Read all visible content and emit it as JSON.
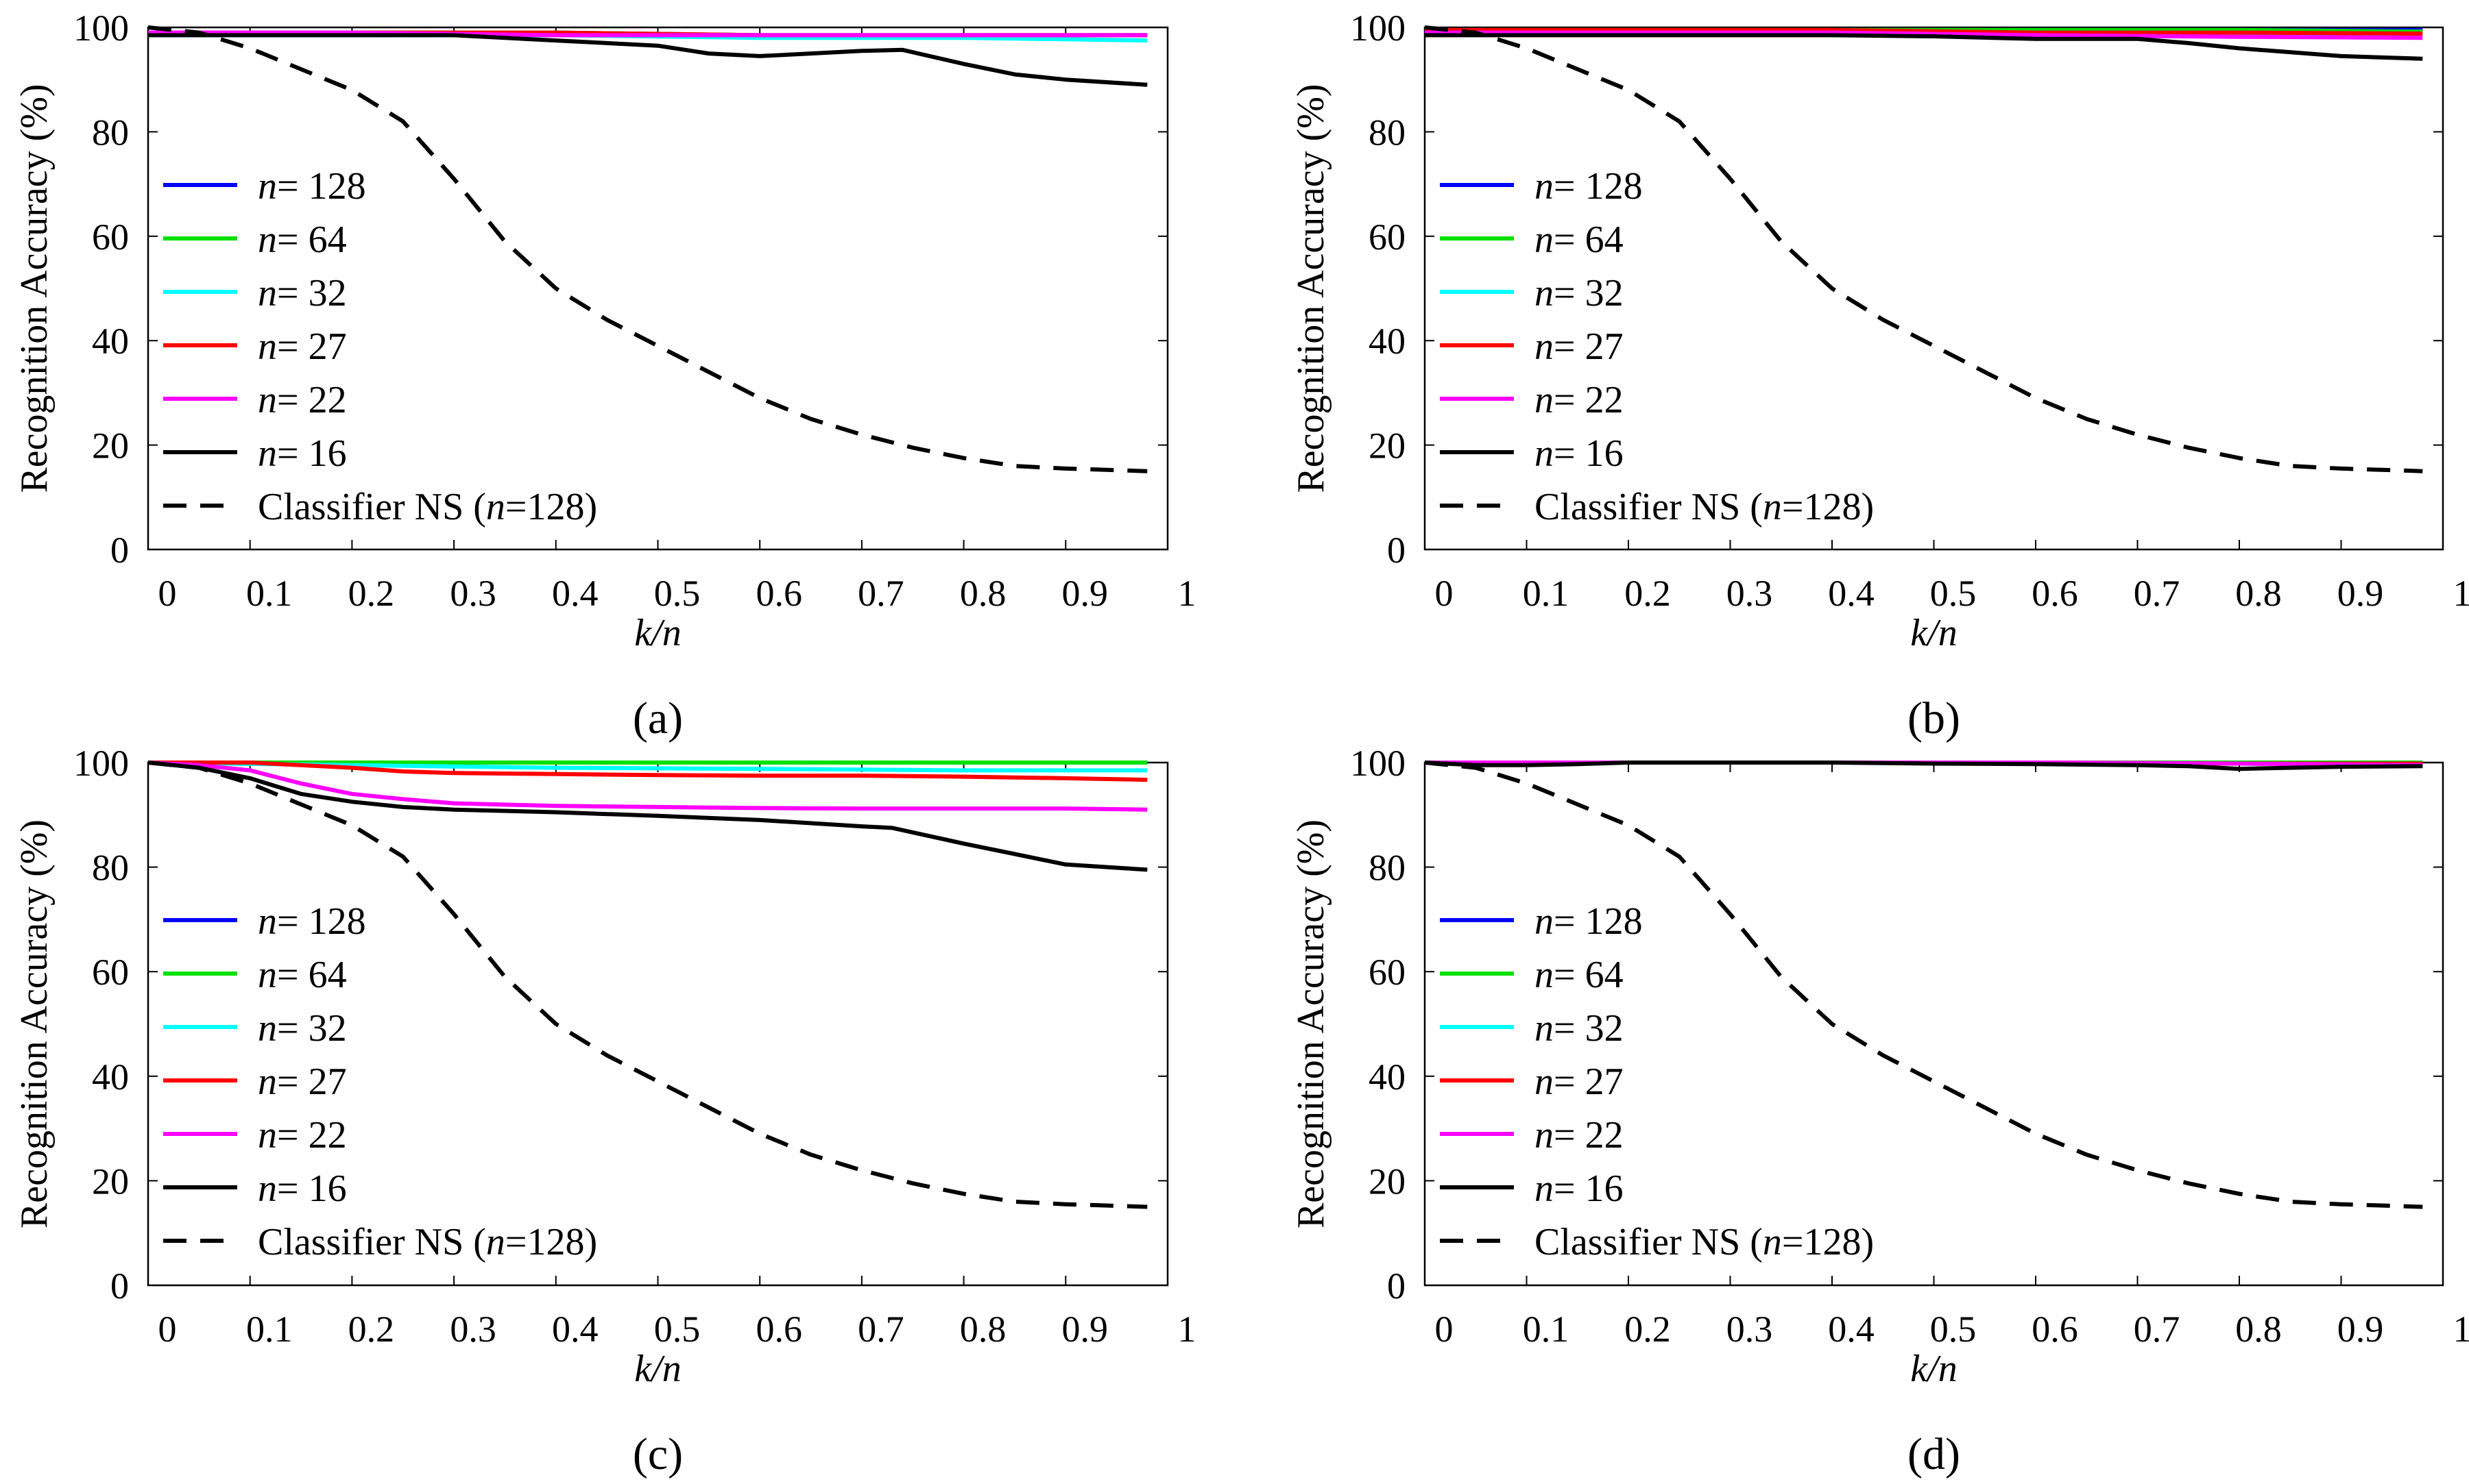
{
  "figure": {
    "x_tick_labels": [
      "0",
      "0.1",
      "0.2",
      "0.3",
      "0.4",
      "0.5",
      "0.6",
      "0.7",
      "0.8",
      "0.9",
      "1"
    ],
    "y_tick_labels": [
      "0",
      "20",
      "40",
      "60",
      "80",
      "100"
    ]
  },
  "chart_data": [
    {
      "type": "line",
      "panel": "a",
      "panel_label": "(a)",
      "xlabel": "k/n",
      "ylabel": "Recognition Accuracy (%)",
      "xlim": [
        0,
        1
      ],
      "ylim": [
        0,
        100
      ],
      "legend_position": "center-left",
      "series": [
        {
          "name": "n= 128",
          "n_value": "128",
          "color": "#0000ff",
          "dash": "solid",
          "x": [
            0,
            0.2,
            0.4,
            0.6,
            0.8,
            0.98
          ],
          "y": [
            99,
            99,
            99,
            98.5,
            98.5,
            98.5
          ]
        },
        {
          "name": "n= 64",
          "n_value": "64",
          "color": "#00e000",
          "dash": "solid",
          "x": [
            0,
            0.2,
            0.4,
            0.6,
            0.8,
            0.98
          ],
          "y": [
            99,
            99,
            99,
            98.5,
            98.5,
            98.5
          ]
        },
        {
          "name": "n= 32",
          "n_value": "32",
          "color": "#00ffff",
          "dash": "solid",
          "x": [
            0,
            0.2,
            0.4,
            0.6,
            0.8,
            0.98
          ],
          "y": [
            98.5,
            98.5,
            98.5,
            98,
            98,
            97.5
          ]
        },
        {
          "name": "n= 27",
          "n_value": "27",
          "color": "#ff0000",
          "dash": "solid",
          "x": [
            0,
            0.2,
            0.4,
            0.6,
            0.8,
            0.98
          ],
          "y": [
            99,
            99,
            99,
            98.5,
            98.5,
            98.5
          ]
        },
        {
          "name": "n= 22",
          "n_value": "22",
          "color": "#ff00ff",
          "dash": "solid",
          "x": [
            0,
            0.2,
            0.4,
            0.6,
            0.8,
            0.98
          ],
          "y": [
            99,
            99,
            98.5,
            98.5,
            98.5,
            98.5
          ]
        },
        {
          "name": "n= 16",
          "n_value": "16",
          "color": "#000000",
          "dash": "solid",
          "x": [
            0,
            0.1,
            0.2,
            0.3,
            0.4,
            0.5,
            0.55,
            0.6,
            0.65,
            0.7,
            0.74,
            0.8,
            0.85,
            0.9,
            0.98
          ],
          "y": [
            98.5,
            98.5,
            98.5,
            98.5,
            97.5,
            96.5,
            95,
            94.5,
            95,
            95.5,
            95.7,
            93,
            91,
            90,
            89
          ]
        },
        {
          "name": "Classifier NS (n=128)",
          "color": "#000000",
          "dash": "dashed",
          "x": [
            0,
            0.05,
            0.1,
            0.15,
            0.2,
            0.25,
            0.3,
            0.35,
            0.4,
            0.45,
            0.5,
            0.55,
            0.6,
            0.65,
            0.7,
            0.75,
            0.8,
            0.85,
            0.9,
            0.95,
            0.98
          ],
          "y": [
            100,
            99,
            96,
            92,
            88,
            82,
            71,
            59,
            50,
            44,
            39,
            34,
            29,
            25,
            22,
            19.5,
            17.5,
            16,
            15.5,
            15.2,
            15
          ]
        }
      ]
    },
    {
      "type": "line",
      "panel": "b",
      "panel_label": "(b)",
      "xlabel": "k/n",
      "ylabel": "Recognition Accuracy (%)",
      "xlim": [
        0,
        1
      ],
      "ylim": [
        0,
        100
      ],
      "legend_position": "center-left",
      "series": [
        {
          "name": "n= 128",
          "n_value": "128",
          "color": "#0000ff",
          "dash": "solid",
          "x": [
            0,
            0.2,
            0.4,
            0.6,
            0.8,
            0.98
          ],
          "y": [
            99.5,
            99.5,
            99.5,
            99.5,
            99.5,
            99.5
          ]
        },
        {
          "name": "n= 64",
          "n_value": "64",
          "color": "#00e000",
          "dash": "solid",
          "x": [
            0,
            0.2,
            0.4,
            0.6,
            0.8,
            0.98
          ],
          "y": [
            99.5,
            99.5,
            99.5,
            99.5,
            99.5,
            99.2
          ]
        },
        {
          "name": "n= 32",
          "n_value": "32",
          "color": "#00ffff",
          "dash": "solid",
          "x": [
            0,
            0.2,
            0.4,
            0.6,
            0.8,
            0.98
          ],
          "y": [
            99,
            99,
            99,
            98.5,
            98.5,
            98.5
          ]
        },
        {
          "name": "n= 27",
          "n_value": "27",
          "color": "#ff0000",
          "dash": "solid",
          "x": [
            0,
            0.2,
            0.4,
            0.6,
            0.8,
            0.98
          ],
          "y": [
            99.5,
            99.5,
            99.5,
            99,
            99,
            98.8
          ]
        },
        {
          "name": "n= 22",
          "n_value": "22",
          "color": "#ff00ff",
          "dash": "solid",
          "x": [
            0,
            0.2,
            0.4,
            0.6,
            0.8,
            0.98
          ],
          "y": [
            99,
            99,
            99,
            98.5,
            98.2,
            98
          ]
        },
        {
          "name": "n= 16",
          "n_value": "16",
          "color": "#000000",
          "dash": "solid",
          "x": [
            0,
            0.1,
            0.2,
            0.3,
            0.4,
            0.5,
            0.6,
            0.7,
            0.75,
            0.8,
            0.9,
            0.98
          ],
          "y": [
            98.5,
            98.5,
            98.5,
            98.5,
            98.5,
            98.3,
            97.8,
            97.8,
            97,
            96,
            94.5,
            94
          ]
        },
        {
          "name": "Classifier NS (n=128)",
          "color": "#000000",
          "dash": "dashed",
          "x": [
            0,
            0.05,
            0.1,
            0.15,
            0.2,
            0.25,
            0.3,
            0.35,
            0.4,
            0.45,
            0.5,
            0.55,
            0.6,
            0.65,
            0.7,
            0.75,
            0.8,
            0.85,
            0.9,
            0.95,
            0.98
          ],
          "y": [
            100,
            99,
            96,
            92,
            88,
            82,
            71,
            59,
            50,
            44,
            39,
            34,
            29,
            25,
            22,
            19.5,
            17.5,
            16,
            15.5,
            15.2,
            15
          ]
        }
      ]
    },
    {
      "type": "line",
      "panel": "c",
      "panel_label": "(c)",
      "xlabel": "k/n",
      "ylabel": "Recognition Accuracy (%)",
      "xlim": [
        0,
        1
      ],
      "ylim": [
        0,
        100
      ],
      "legend_position": "lower-left",
      "series": [
        {
          "name": "n= 128",
          "n_value": "128",
          "color": "#0000ff",
          "dash": "solid",
          "x": [
            0,
            0.2,
            0.4,
            0.6,
            0.8,
            0.98
          ],
          "y": [
            100,
            100,
            100,
            100,
            100,
            100
          ]
        },
        {
          "name": "n= 64",
          "n_value": "64",
          "color": "#00e000",
          "dash": "solid",
          "x": [
            0,
            0.2,
            0.4,
            0.6,
            0.8,
            0.98
          ],
          "y": [
            100,
            100,
            100,
            100,
            100,
            100
          ]
        },
        {
          "name": "n= 32",
          "n_value": "32",
          "color": "#00ffff",
          "dash": "solid",
          "x": [
            0,
            0.2,
            0.4,
            0.6,
            0.8,
            0.98
          ],
          "y": [
            100,
            99.5,
            99,
            98.8,
            98.5,
            98.5
          ]
        },
        {
          "name": "n= 27",
          "n_value": "27",
          "color": "#ff0000",
          "dash": "solid",
          "x": [
            0,
            0.1,
            0.2,
            0.25,
            0.3,
            0.4,
            0.5,
            0.6,
            0.7,
            0.8,
            0.9,
            0.98
          ],
          "y": [
            100,
            100,
            99,
            98.3,
            98,
            97.8,
            97.6,
            97.5,
            97.5,
            97.3,
            97,
            96.7
          ]
        },
        {
          "name": "n= 22",
          "n_value": "22",
          "color": "#ff00ff",
          "dash": "solid",
          "x": [
            0,
            0.05,
            0.1,
            0.15,
            0.2,
            0.25,
            0.3,
            0.4,
            0.5,
            0.6,
            0.7,
            0.8,
            0.9,
            0.98
          ],
          "y": [
            100,
            99.5,
            98.5,
            96,
            94,
            93,
            92.2,
            91.7,
            91.5,
            91.3,
            91.2,
            91.2,
            91.2,
            91
          ]
        },
        {
          "name": "n= 16",
          "n_value": "16",
          "color": "#000000",
          "dash": "solid",
          "x": [
            0,
            0.05,
            0.1,
            0.15,
            0.2,
            0.25,
            0.3,
            0.4,
            0.5,
            0.6,
            0.7,
            0.73,
            0.8,
            0.85,
            0.9,
            0.98
          ],
          "y": [
            100,
            99,
            97,
            94,
            92.5,
            91.5,
            91,
            90.5,
            89.8,
            89,
            87.8,
            87.5,
            84.5,
            82.5,
            80.5,
            79.5
          ]
        },
        {
          "name": "Classifier NS (n=128)",
          "color": "#000000",
          "dash": "dashed",
          "x": [
            0,
            0.05,
            0.1,
            0.15,
            0.2,
            0.25,
            0.3,
            0.35,
            0.4,
            0.45,
            0.5,
            0.55,
            0.6,
            0.65,
            0.7,
            0.75,
            0.8,
            0.85,
            0.9,
            0.95,
            0.98
          ],
          "y": [
            100,
            99,
            96,
            92,
            88,
            82,
            71,
            59,
            50,
            44,
            39,
            34,
            29,
            25,
            22,
            19.5,
            17.5,
            16,
            15.5,
            15.2,
            15
          ]
        }
      ]
    },
    {
      "type": "line",
      "panel": "d",
      "panel_label": "(d)",
      "xlabel": "k/n",
      "ylabel": "Recognition Accuracy (%)",
      "xlim": [
        0,
        1
      ],
      "ylim": [
        0,
        100
      ],
      "legend_position": "lower-left",
      "series": [
        {
          "name": "n= 128",
          "n_value": "128",
          "color": "#0000ff",
          "dash": "solid",
          "x": [
            0,
            0.2,
            0.4,
            0.6,
            0.8,
            0.98
          ],
          "y": [
            100,
            100,
            100,
            100,
            100,
            100
          ]
        },
        {
          "name": "n= 64",
          "n_value": "64",
          "color": "#00e000",
          "dash": "solid",
          "x": [
            0,
            0.2,
            0.4,
            0.6,
            0.8,
            0.98
          ],
          "y": [
            100,
            100,
            100,
            100,
            100,
            100
          ]
        },
        {
          "name": "n= 32",
          "n_value": "32",
          "color": "#00ffff",
          "dash": "solid",
          "x": [
            0,
            0.2,
            0.4,
            0.6,
            0.8,
            0.98
          ],
          "y": [
            100,
            100,
            100,
            99.8,
            99.8,
            99.8
          ]
        },
        {
          "name": "n= 27",
          "n_value": "27",
          "color": "#ff0000",
          "dash": "solid",
          "x": [
            0,
            0.2,
            0.4,
            0.6,
            0.8,
            0.98
          ],
          "y": [
            100,
            100,
            100,
            100,
            99.8,
            99.8
          ]
        },
        {
          "name": "n= 22",
          "n_value": "22",
          "color": "#ff00ff",
          "dash": "solid",
          "x": [
            0,
            0.2,
            0.4,
            0.6,
            0.8,
            0.98
          ],
          "y": [
            100,
            100,
            100,
            100,
            99.8,
            99.5
          ]
        },
        {
          "name": "n= 16",
          "n_value": "16",
          "color": "#000000",
          "dash": "solid",
          "x": [
            0,
            0.05,
            0.1,
            0.15,
            0.2,
            0.3,
            0.4,
            0.5,
            0.6,
            0.7,
            0.75,
            0.8,
            0.85,
            0.9,
            0.98
          ],
          "y": [
            100,
            99.5,
            99.5,
            99.7,
            100,
            100,
            100,
            99.8,
            99.7,
            99.5,
            99.3,
            98.8,
            99,
            99.2,
            99.3
          ]
        },
        {
          "name": "Classifier NS (n=128)",
          "color": "#000000",
          "dash": "dashed",
          "x": [
            0,
            0.05,
            0.1,
            0.15,
            0.2,
            0.25,
            0.3,
            0.35,
            0.4,
            0.45,
            0.5,
            0.55,
            0.6,
            0.65,
            0.7,
            0.75,
            0.8,
            0.85,
            0.9,
            0.95,
            0.98
          ],
          "y": [
            100,
            99,
            96,
            92,
            88,
            82,
            71,
            59,
            50,
            44,
            39,
            34,
            29,
            25,
            22,
            19.5,
            17.5,
            16,
            15.5,
            15.2,
            15
          ]
        }
      ]
    }
  ]
}
